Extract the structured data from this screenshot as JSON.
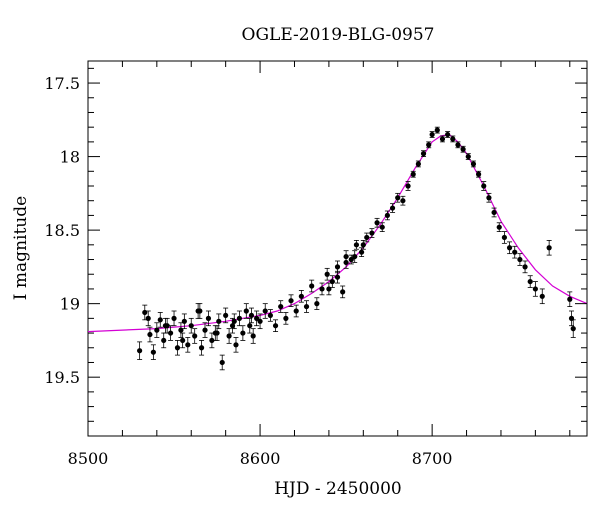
{
  "chart_data": {
    "type": "scatter",
    "title": "OGLE-2019-BLG-0957",
    "xlabel": "HJD - 2450000",
    "ylabel": "I magnitude",
    "xlim": [
      8500,
      8790
    ],
    "ylim": [
      19.9,
      17.35
    ],
    "y_inverted": true,
    "grid": false,
    "legend": "none",
    "x_ticks": [
      8500,
      8600,
      8700
    ],
    "y_ticks": [
      17.5,
      18,
      18.5,
      19,
      19.5
    ],
    "x_tick_labels": [
      "8500",
      "8600",
      "8700"
    ],
    "y_tick_labels": [
      "17.5",
      "18",
      "18.5",
      "19",
      "19.5"
    ],
    "colors": {
      "points": "#000000",
      "model": "#d400d4"
    },
    "model_curve": {
      "name": "",
      "x": [
        8500,
        8520,
        8540,
        8560,
        8580,
        8600,
        8610,
        8620,
        8630,
        8640,
        8650,
        8660,
        8670,
        8680,
        8690,
        8700,
        8705,
        8710,
        8715,
        8720,
        8730,
        8740,
        8750,
        8760,
        8770,
        8780,
        8790
      ],
      "y": [
        19.19,
        19.18,
        19.17,
        19.15,
        19.12,
        19.08,
        19.05,
        19.0,
        18.93,
        18.85,
        18.75,
        18.62,
        18.46,
        18.28,
        18.08,
        17.9,
        17.86,
        17.85,
        17.9,
        17.98,
        18.2,
        18.44,
        18.62,
        18.77,
        18.88,
        18.95,
        19.0
      ]
    },
    "series": [
      {
        "name": "",
        "x": [
          8530,
          8533,
          8536,
          8538,
          8540,
          8542,
          8544,
          8546,
          8548,
          8550,
          8552,
          8554,
          8556,
          8558,
          8560,
          8562,
          8564,
          8566,
          8568,
          8570,
          8572,
          8574,
          8576,
          8578,
          8580,
          8582,
          8584,
          8586,
          8588,
          8590,
          8592,
          8594,
          8596,
          8598,
          8600,
          8603,
          8606,
          8609,
          8612,
          8615,
          8618,
          8621,
          8624,
          8627,
          8630,
          8633,
          8636,
          8639,
          8642,
          8645,
          8648,
          8650,
          8653,
          8656,
          8659,
          8662,
          8665,
          8668,
          8671,
          8674,
          8677,
          8680,
          8683,
          8686,
          8689,
          8692,
          8695,
          8698,
          8700,
          8703,
          8706,
          8709,
          8712,
          8715,
          8718,
          8721,
          8724,
          8727,
          8730,
          8733,
          8736,
          8739,
          8742,
          8745,
          8748,
          8751,
          8754,
          8757,
          8760,
          8764,
          8768,
          8780,
          8781,
          8782,
          8535,
          8545,
          8555,
          8565,
          8575,
          8585,
          8595,
          8640,
          8645,
          8650,
          8655,
          8660
        ],
        "y": [
          19.32,
          19.06,
          19.21,
          19.33,
          19.18,
          19.11,
          19.25,
          19.15,
          19.2,
          19.1,
          19.3,
          19.18,
          19.12,
          19.28,
          19.15,
          19.22,
          19.05,
          19.3,
          19.18,
          19.1,
          19.25,
          19.2,
          19.12,
          19.4,
          19.08,
          19.22,
          19.15,
          19.28,
          19.1,
          19.2,
          19.05,
          19.15,
          19.22,
          19.1,
          19.12,
          19.05,
          19.08,
          19.15,
          19.02,
          19.1,
          18.98,
          19.05,
          18.95,
          19.02,
          18.88,
          19.0,
          18.9,
          18.8,
          18.85,
          18.75,
          18.92,
          18.68,
          18.7,
          18.6,
          18.65,
          18.55,
          18.52,
          18.45,
          18.48,
          18.4,
          18.35,
          18.28,
          18.3,
          18.2,
          18.12,
          18.05,
          17.98,
          17.92,
          17.85,
          17.82,
          17.88,
          17.85,
          17.88,
          17.92,
          17.95,
          18.0,
          18.05,
          18.12,
          18.2,
          18.28,
          18.38,
          18.48,
          18.55,
          18.62,
          18.65,
          18.7,
          18.75,
          18.85,
          18.9,
          18.95,
          18.62,
          18.97,
          19.1,
          19.17,
          19.1,
          19.15,
          19.25,
          19.05,
          19.2,
          19.12,
          19.08,
          18.9,
          18.82,
          18.72,
          18.68,
          18.6
        ],
        "err": [
          0.06,
          0.05,
          0.05,
          0.05,
          0.05,
          0.05,
          0.05,
          0.05,
          0.05,
          0.05,
          0.05,
          0.05,
          0.05,
          0.05,
          0.05,
          0.05,
          0.05,
          0.05,
          0.05,
          0.05,
          0.05,
          0.05,
          0.05,
          0.05,
          0.05,
          0.05,
          0.05,
          0.05,
          0.05,
          0.05,
          0.05,
          0.05,
          0.05,
          0.05,
          0.05,
          0.05,
          0.04,
          0.04,
          0.04,
          0.04,
          0.04,
          0.04,
          0.04,
          0.04,
          0.04,
          0.04,
          0.04,
          0.04,
          0.04,
          0.04,
          0.04,
          0.04,
          0.03,
          0.03,
          0.03,
          0.03,
          0.03,
          0.03,
          0.03,
          0.03,
          0.03,
          0.03,
          0.03,
          0.03,
          0.02,
          0.02,
          0.02,
          0.02,
          0.02,
          0.02,
          0.02,
          0.02,
          0.02,
          0.02,
          0.02,
          0.02,
          0.02,
          0.02,
          0.03,
          0.03,
          0.03,
          0.03,
          0.04,
          0.04,
          0.04,
          0.04,
          0.04,
          0.04,
          0.05,
          0.05,
          0.05,
          0.05,
          0.05,
          0.06,
          0.05,
          0.05,
          0.05,
          0.05,
          0.05,
          0.05,
          0.05,
          0.04,
          0.04,
          0.04,
          0.04,
          0.03
        ]
      }
    ]
  }
}
